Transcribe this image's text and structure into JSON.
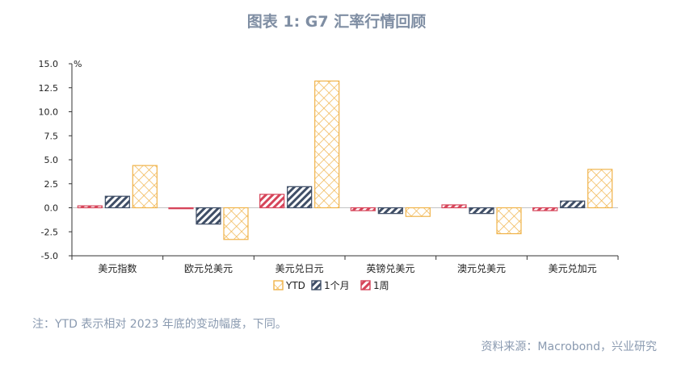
{
  "title": "图表 1: G7 汇率行情回顾",
  "note": "注：YTD 表示相对 2023 年底的变动幅度，下同。",
  "source": "资料来源：Macrobond，兴业研究",
  "chart_data": {
    "type": "bar",
    "unit": "%",
    "categories": [
      "美元指数",
      "欧元兑美元",
      "美元兑日元",
      "英镑兑美元",
      "澳元兑美元",
      "美元兑加元"
    ],
    "series": [
      {
        "name": "1周",
        "values": [
          0.2,
          -0.1,
          1.4,
          -0.3,
          0.3,
          -0.3
        ],
        "color": "#d6455a"
      },
      {
        "name": "1个月",
        "values": [
          1.2,
          -1.7,
          2.2,
          -0.6,
          -0.6,
          0.7
        ],
        "color": "#3f4e66"
      },
      {
        "name": "YTD",
        "values": [
          4.4,
          -3.3,
          13.2,
          -0.9,
          -2.7,
          4.0
        ],
        "color": "#f0b34a"
      }
    ],
    "legend_order": [
      "YTD",
      "1个月",
      "1周"
    ],
    "ylim": [
      -5.0,
      15.0
    ],
    "yticks": [
      "15.0",
      "12.5",
      "10.0",
      "7.5",
      "5.0",
      "2.5",
      "0.0",
      "-2.5",
      "-5.0"
    ],
    "legend_position": "bottom",
    "grid": false
  }
}
